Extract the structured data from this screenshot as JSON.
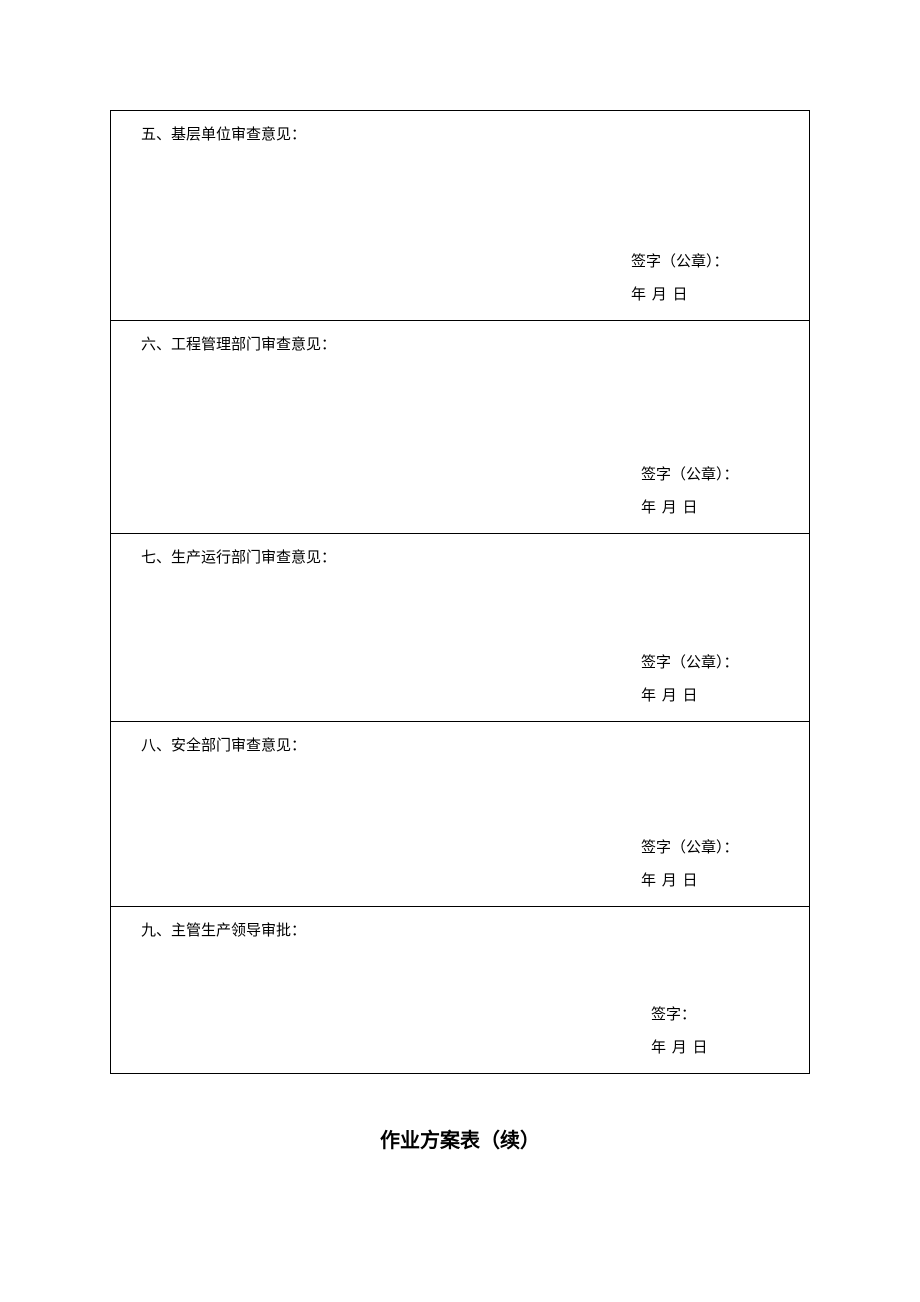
{
  "sections": {
    "s5": {
      "title": "五、基层单位审查意见：",
      "signature_label": "签字（公章）：",
      "date_line": "年   月   日"
    },
    "s6": {
      "title": "六、工程管理部门审查意见：",
      "signature_label": "签字（公章）：",
      "date_line": "年   月   日"
    },
    "s7": {
      "title": "七、生产运行部门审查意见：",
      "signature_label": "签字（公章）：",
      "date_line": "年   月   日"
    },
    "s8": {
      "title": "八、安全部门审查意见：",
      "signature_label": "签字（公章）：",
      "date_line": "年   月   日"
    },
    "s9": {
      "title": "九、主管生产领导审批：",
      "signature_label": "签字：",
      "date_line": "年    月    日"
    }
  },
  "page_title": "作业方案表（续）",
  "styling": {
    "border_color": "#000000",
    "background_color": "#ffffff",
    "text_color": "#000000",
    "title_fontsize": 15,
    "page_title_fontsize": 20,
    "font_family": "SimSun"
  }
}
